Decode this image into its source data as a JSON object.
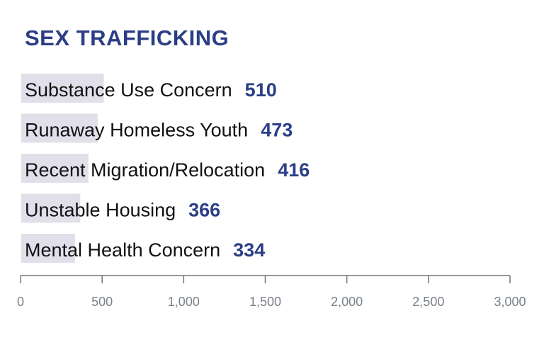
{
  "chart_data": {
    "type": "bar",
    "orientation": "horizontal",
    "title": "SEX TRAFFICKING",
    "categories": [
      "Substance Use Concern",
      "Runaway Homeless Youth",
      "Recent Migration/Relocation",
      "Unstable Housing",
      "Mental Health Concern"
    ],
    "values": [
      510,
      473,
      416,
      366,
      334
    ],
    "xlim": [
      0,
      3000
    ],
    "xticks": [
      0,
      500,
      1000,
      1500,
      2000,
      2500,
      3000
    ],
    "xtick_labels": [
      "0",
      "500",
      "1,000",
      "1,500",
      "2,000",
      "2,500",
      "3,000"
    ],
    "grid": false,
    "colors": {
      "bar": "#e1e0ea",
      "value": "#2b3e86",
      "title": "#2b3e86",
      "axis": "#6f757e"
    }
  }
}
